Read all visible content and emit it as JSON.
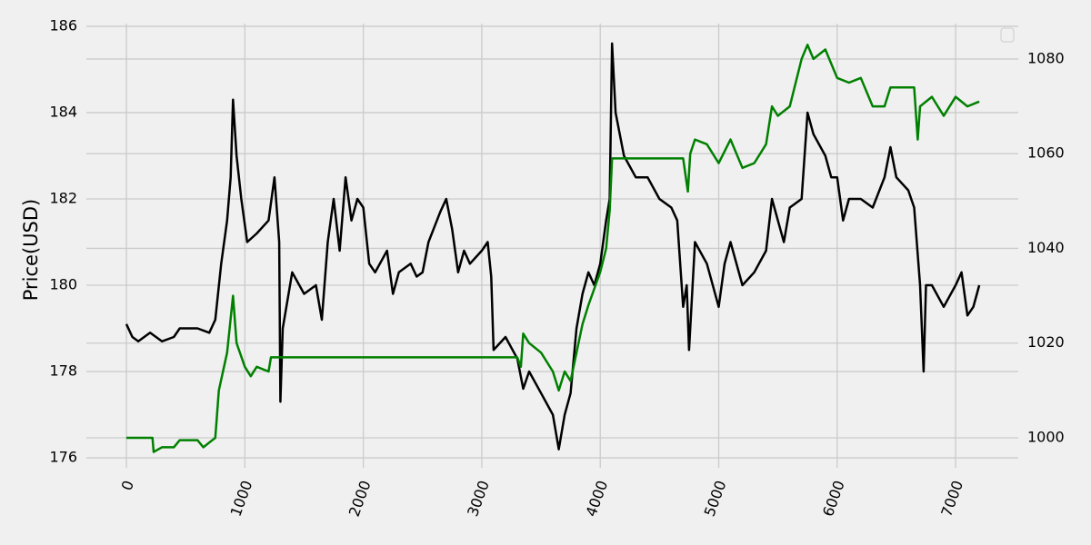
{
  "chart_data": {
    "type": "line",
    "ylabel": "Price(USD)",
    "xlim": [
      -338,
      7529
    ],
    "xticks": [
      0,
      1000,
      2000,
      3000,
      4000,
      5000,
      6000,
      7000
    ],
    "ylim": [
      175.77,
      186.23
    ],
    "yticks": [
      176,
      178,
      180,
      182,
      184,
      186
    ],
    "y2lim": [
      993.67,
      1089.0
    ],
    "y2ticks": [
      1000,
      1020,
      1040,
      1060,
      1080
    ],
    "grid": true,
    "legend": "upper right",
    "series": [
      {
        "color": "#000000",
        "x": [
          0,
          50,
          100,
          200,
          300,
          400,
          450,
          600,
          700,
          750,
          800,
          850,
          880,
          900,
          930,
          970,
          1020,
          1100,
          1200,
          1250,
          1290,
          1300,
          1320,
          1400,
          1500,
          1600,
          1650,
          1700,
          1750,
          1800,
          1850,
          1900,
          1950,
          2000,
          2050,
          2100,
          2200,
          2250,
          2300,
          2400,
          2450,
          2500,
          2550,
          2650,
          2700,
          2750,
          2800,
          2850,
          2900,
          3000,
          3050,
          3080,
          3100,
          3200,
          3300,
          3350,
          3400,
          3500,
          3600,
          3650,
          3700,
          3750,
          3800,
          3850,
          3900,
          3950,
          4000,
          4050,
          4080,
          4100,
          4130,
          4200,
          4300,
          4400,
          4500,
          4600,
          4650,
          4700,
          4730,
          4750,
          4800,
          4900,
          5000,
          5050,
          5100,
          5200,
          5300,
          5400,
          5450,
          5500,
          5550,
          5600,
          5700,
          5750,
          5800,
          5900,
          5950,
          6000,
          6050,
          6100,
          6200,
          6300,
          6400,
          6450,
          6500,
          6600,
          6650,
          6700,
          6730,
          6750,
          6800,
          6900,
          7000,
          7050,
          7100,
          7150,
          7200
        ],
        "values": [
          179.1,
          178.8,
          178.7,
          178.9,
          178.7,
          178.8,
          179.0,
          179.0,
          178.9,
          179.2,
          180.5,
          181.5,
          182.5,
          184.3,
          183.0,
          182.0,
          181.0,
          181.2,
          181.5,
          182.5,
          181.0,
          177.3,
          179.0,
          180.3,
          179.8,
          180.0,
          179.2,
          181.0,
          182.0,
          180.8,
          182.5,
          181.5,
          182.0,
          181.8,
          180.5,
          180.3,
          180.8,
          179.8,
          180.3,
          180.5,
          180.2,
          180.3,
          181.0,
          181.7,
          182.0,
          181.3,
          180.3,
          180.8,
          180.5,
          180.8,
          181.0,
          180.2,
          178.5,
          178.8,
          178.3,
          177.6,
          178.0,
          177.5,
          177.0,
          176.2,
          177.0,
          177.5,
          179.0,
          179.8,
          180.3,
          180.0,
          180.5,
          181.5,
          182.0,
          185.6,
          184.0,
          183.0,
          182.5,
          182.5,
          182.0,
          181.8,
          181.5,
          179.5,
          180.0,
          178.5,
          181.0,
          180.5,
          179.5,
          180.5,
          181.0,
          180.0,
          180.3,
          180.8,
          182.0,
          181.5,
          181.0,
          181.8,
          182.0,
          184.0,
          183.5,
          183.0,
          182.5,
          182.5,
          181.5,
          182.0,
          182.0,
          181.8,
          182.5,
          183.2,
          182.5,
          182.2,
          181.8,
          180.0,
          178.0,
          180.0,
          180.0,
          179.5,
          180.0,
          180.3,
          179.3,
          179.5,
          180.0
        ]
      },
      {
        "color": "#008000",
        "axis": "y2",
        "x": [
          0,
          220,
          230,
          300,
          400,
          450,
          600,
          650,
          700,
          750,
          780,
          850,
          900,
          930,
          1000,
          1050,
          1100,
          1200,
          1220,
          1250,
          3300,
          3330,
          3350,
          3400,
          3500,
          3600,
          3650,
          3700,
          3750,
          3800,
          3850,
          3900,
          4000,
          4050,
          4080,
          4100,
          4700,
          4740,
          4760,
          4800,
          4900,
          5000,
          5100,
          5200,
          5300,
          5400,
          5450,
          5500,
          5600,
          5700,
          5750,
          5800,
          5900,
          6000,
          6100,
          6200,
          6300,
          6400,
          6450,
          6650,
          6680,
          6700,
          6800,
          6900,
          7000,
          7100,
          7200
        ],
        "values": [
          1000,
          1000,
          997,
          998,
          998,
          999.5,
          999.5,
          998,
          999,
          1000,
          1010,
          1018,
          1030,
          1020,
          1015,
          1013,
          1015,
          1014,
          1017,
          1017,
          1017,
          1015,
          1022,
          1020,
          1018,
          1014,
          1010,
          1014,
          1012,
          1018,
          1024,
          1028,
          1035,
          1040,
          1048,
          1059,
          1059,
          1052,
          1060,
          1063,
          1062,
          1058,
          1063,
          1057,
          1058,
          1062,
          1070,
          1068,
          1070,
          1080,
          1083,
          1080,
          1082,
          1076,
          1075,
          1076,
          1070,
          1070,
          1074,
          1074,
          1063,
          1070,
          1072,
          1068,
          1072,
          1070,
          1071
        ]
      }
    ]
  }
}
